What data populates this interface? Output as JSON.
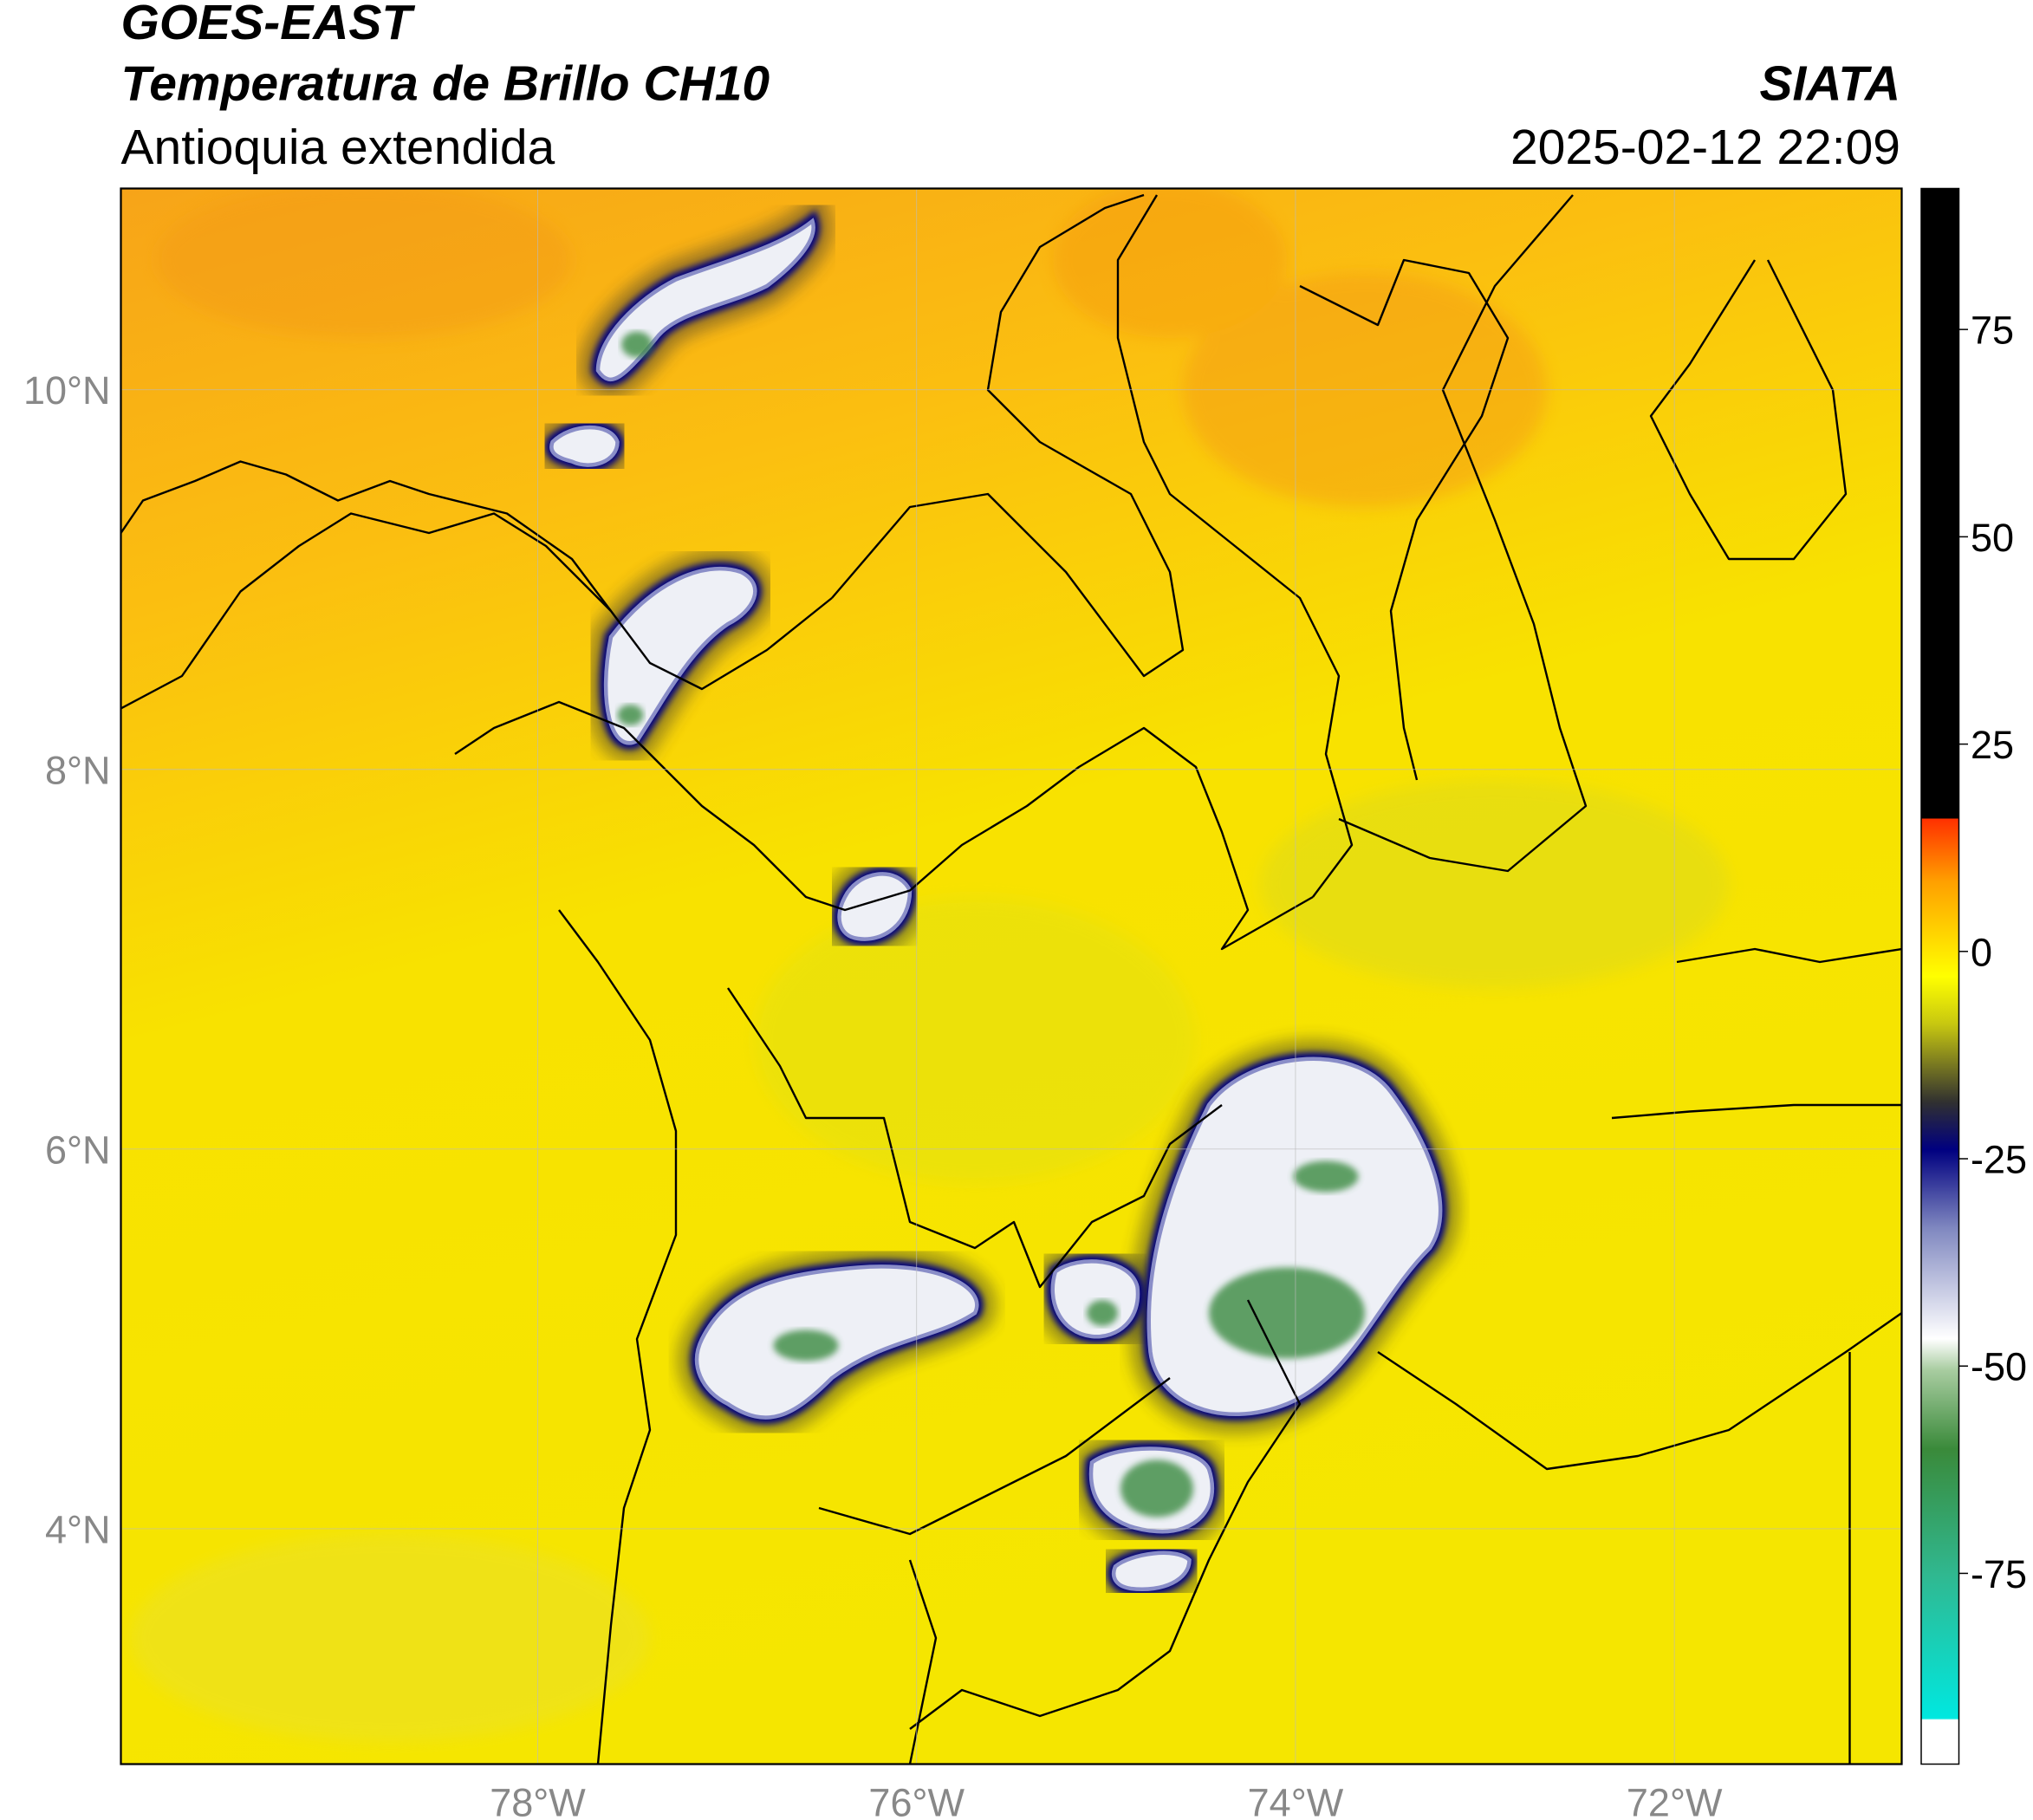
{
  "header": {
    "satellite": "GOES-EAST",
    "product": "Temperatura de Brillo CH10",
    "region": "Antioquia extendida",
    "source": "SIATA",
    "timestamp": "2025-02-12 22:09"
  },
  "map": {
    "lon_range": [
      -80.2,
      -70.8
    ],
    "lat_range": [
      2.76,
      11.06
    ],
    "lon_ticks": [
      {
        "value": -78,
        "label": "78°W"
      },
      {
        "value": -76,
        "label": "76°W"
      },
      {
        "value": -74,
        "label": "74°W"
      },
      {
        "value": -72,
        "label": "72°W"
      }
    ],
    "lat_ticks": [
      {
        "value": 4,
        "label": "4°N"
      },
      {
        "value": 6,
        "label": "6°N"
      },
      {
        "value": 8,
        "label": "8°N"
      },
      {
        "value": 10,
        "label": "10°N"
      }
    ]
  },
  "colorbar": {
    "range": [
      -98,
      92
    ],
    "ticks": [
      -75,
      -50,
      -25,
      0,
      25,
      50,
      75
    ]
  }
}
